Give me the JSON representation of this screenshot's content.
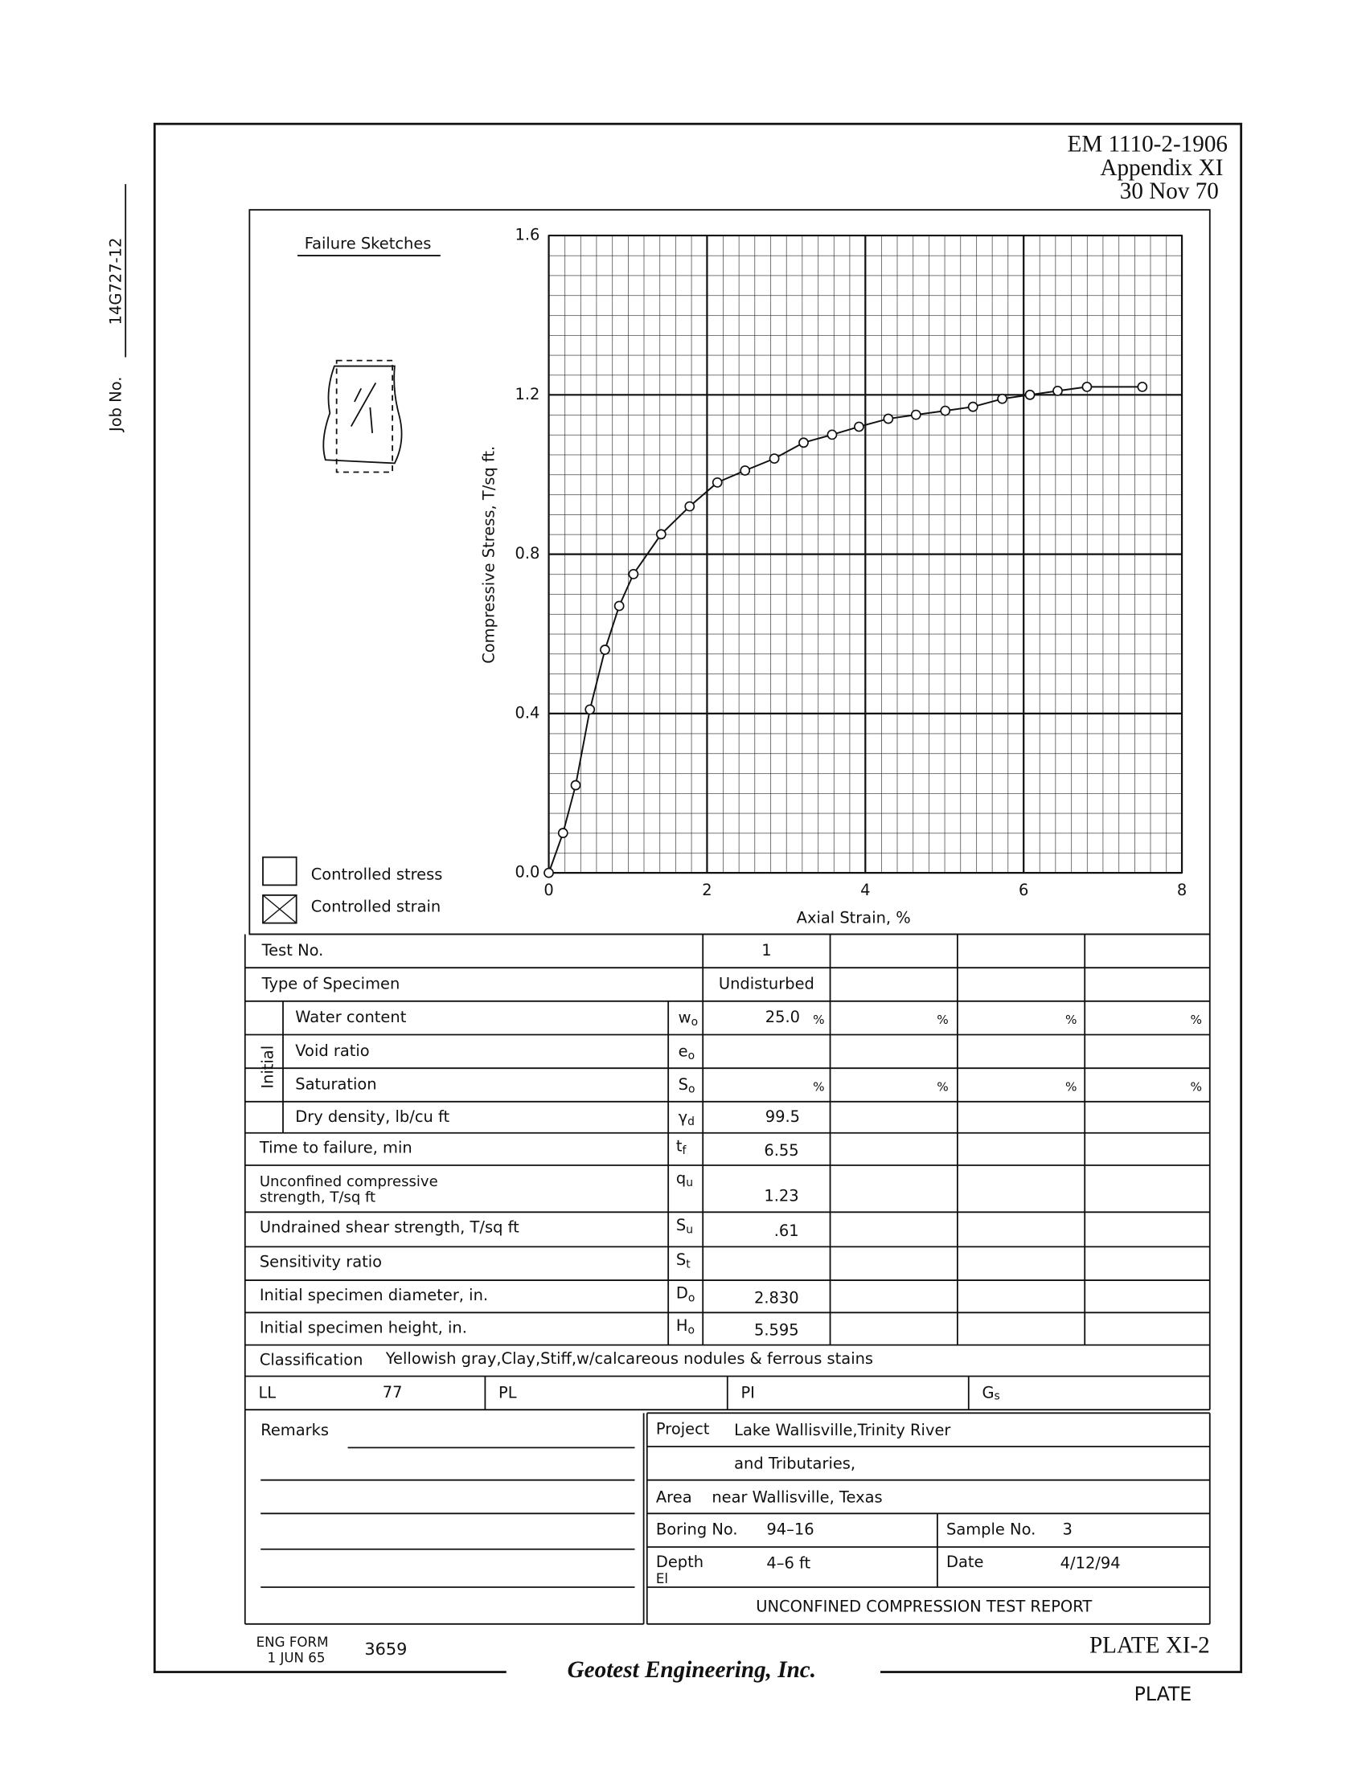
{
  "header": {
    "doc_number": "EM 1110-2-1906",
    "appendix": "Appendix XI",
    "date": "30 Nov 70"
  },
  "job": {
    "label": "Job No.",
    "number": "14G727-12"
  },
  "sketch": {
    "title": "Failure Sketches"
  },
  "legend": {
    "items": [
      "Controlled stress",
      "Controlled strain"
    ]
  },
  "chart_data": {
    "type": "line",
    "x_label": "Axial Strain, %",
    "y_label": "Compressive Stress, T/sq ft.",
    "x": [
      0,
      0.18,
      0.34,
      0.52,
      0.71,
      0.89,
      1.07,
      1.42,
      1.78,
      2.13,
      2.48,
      2.85,
      3.22,
      3.58,
      3.92,
      4.29,
      4.64,
      5.01,
      5.36,
      5.73,
      6.08,
      6.43,
      6.8,
      7.5
    ],
    "series": [
      {
        "color": "#111111",
        "values": [
          0,
          0.1,
          0.22,
          0.41,
          0.56,
          0.67,
          0.75,
          0.85,
          0.92,
          0.98,
          1.01,
          1.04,
          1.08,
          1.1,
          1.12,
          1.14,
          1.15,
          1.16,
          1.17,
          1.19,
          1.2,
          1.21,
          1.22,
          1.22
        ]
      }
    ],
    "marker": "circle",
    "xlim": [
      0,
      8
    ],
    "ylim": [
      0,
      1.6
    ],
    "xticks": [
      0,
      2,
      4,
      6,
      8
    ],
    "yticks": [
      {
        "value": 0,
        "label": "0.0"
      },
      0.4,
      0.8,
      1.2,
      1.6
    ],
    "grid": true
  },
  "table": {
    "test_no": {
      "label": "Test No.",
      "value": "1"
    },
    "specimen": {
      "label": "Type of Specimen",
      "value": "Undisturbed"
    },
    "initial": {
      "label": "Initial",
      "rows": [
        {
          "label": "Water content",
          "symbol": "w",
          "sub": "o",
          "value": "25.0",
          "unit": "%"
        },
        {
          "label": "Void ratio",
          "symbol": "e",
          "sub": "o"
        },
        {
          "label": "Saturation",
          "symbol": "S",
          "sub": "o",
          "unit": "%"
        },
        {
          "label": "Dry density, lb/cu ft",
          "symbol": "γ",
          "sub": "d",
          "value": "99.5"
        }
      ]
    },
    "rows": [
      {
        "lines": [
          "Time to failure, min"
        ],
        "symbol": "t",
        "sub": "f",
        "value": "6.55"
      },
      {
        "lines": [
          "Unconfined compressive",
          "strength, T/sq ft"
        ],
        "symbol": "q",
        "sub": "u",
        "value": "1.23"
      },
      {
        "lines": [
          "Undrained shear strength, T/sq ft"
        ],
        "symbol": "S",
        "sub": "u",
        "value": ".61"
      },
      {
        "lines": [
          "Sensitivity ratio"
        ],
        "symbol": "S",
        "sub": "t"
      },
      {
        "lines": [
          "Initial specimen diameter, in."
        ],
        "symbol": "D",
        "sub": "o",
        "value": "2.830"
      },
      {
        "lines": [
          "Initial specimen height, in."
        ],
        "symbol": "H",
        "sub": "o",
        "value": "5.595"
      }
    ],
    "classification": {
      "label": "Classification",
      "text": "Yellowish gray,Clay,Stiff,w/calcareous nodules & ferrous stains"
    },
    "limits": [
      {
        "label": "LL",
        "value": "77"
      },
      {
        "label": "PL"
      },
      {
        "label": "PI"
      },
      {
        "label": "G",
        "sub": "s"
      }
    ]
  },
  "remarks": {
    "label": "Remarks"
  },
  "info": {
    "project": {
      "label": "Project",
      "lines": [
        "Lake Wallisville,Trinity River",
        "and Tributaries,"
      ]
    },
    "area": {
      "label": "Area",
      "value": "near Wallisville, Texas"
    },
    "boring": {
      "label": "Boring No.",
      "value": "94–16"
    },
    "sample": {
      "label": "Sample No.",
      "value": "3"
    },
    "depth": {
      "label": "Depth",
      "elevation_label": "El",
      "value": "4–6 ft"
    },
    "date": {
      "label": "Date",
      "value": "4/12/94"
    },
    "report_title": "UNCONFINED COMPRESSION TEST REPORT"
  },
  "footer": {
    "form": "ENG FORM",
    "form_date": "1 JUN 65",
    "form_number": "3659",
    "plate": "PLATE XI-2",
    "company": "Geotest Engineering, Inc.",
    "plate_label": "PLATE"
  }
}
